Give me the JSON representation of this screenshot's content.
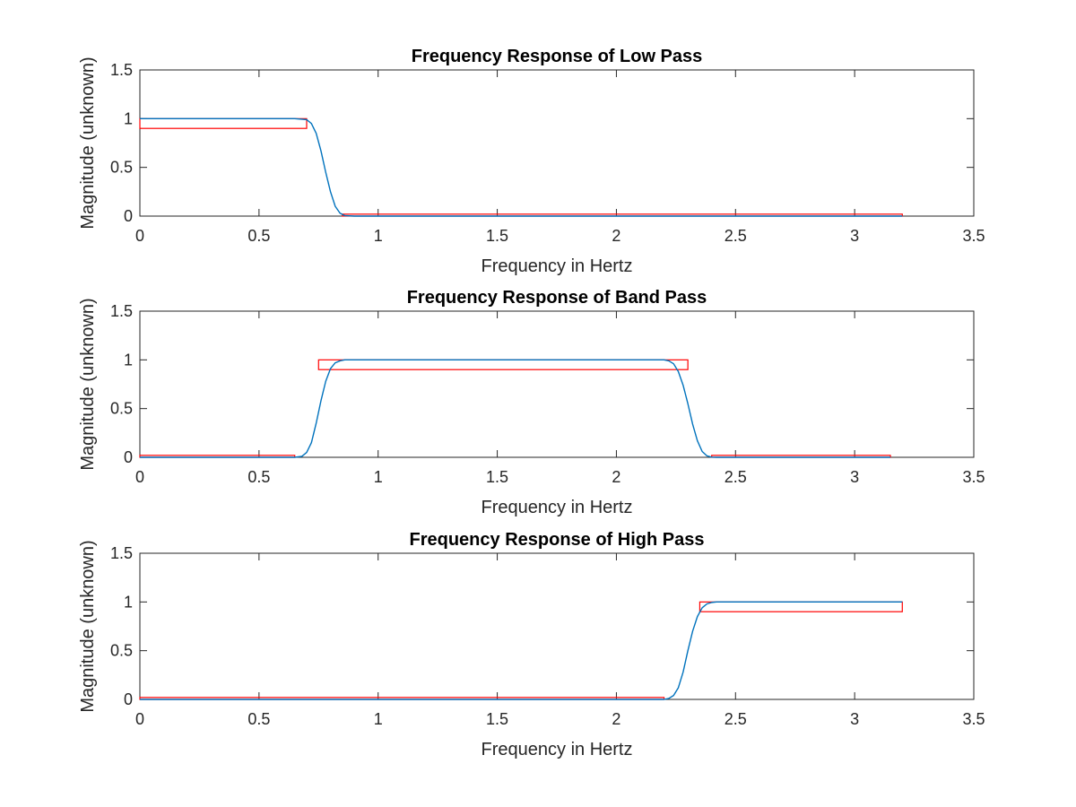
{
  "chart_data": [
    {
      "type": "line",
      "title": "Frequency Response of Low Pass",
      "xlabel": "Frequency in Hertz",
      "ylabel": "Magnitude (unknown)",
      "xlim": [
        0,
        3.5
      ],
      "ylim": [
        0,
        1.5
      ],
      "xticks": [
        "0",
        "0.5",
        "1",
        "1.5",
        "2",
        "2.5",
        "3",
        "3.5"
      ],
      "yticks": [
        "0",
        "0.5",
        "1",
        "1.5"
      ],
      "grid": false,
      "line_color": "#0072BD",
      "mask_color": "#FF0000",
      "series": [
        {
          "x": [
            0,
            0.6,
            0.65,
            0.7,
            0.72,
            0.74,
            0.76,
            0.78,
            0.8,
            0.82,
            0.84,
            0.86,
            0.9,
            1.0,
            3.2
          ],
          "values": [
            1,
            1,
            1,
            0.99,
            0.95,
            0.85,
            0.67,
            0.45,
            0.25,
            0.1,
            0.03,
            0.005,
            0,
            0,
            0
          ]
        }
      ],
      "mask_boxes": [
        {
          "x": [
            0,
            0.7
          ],
          "y": [
            0.9,
            1.0
          ]
        },
        {
          "x": [
            0.85,
            3.2
          ],
          "y": [
            0.0,
            0.02
          ]
        }
      ]
    },
    {
      "type": "line",
      "title": "Frequency Response of Band Pass",
      "xlabel": "Frequency in Hertz",
      "ylabel": "Magnitude (unknown)",
      "xlim": [
        0,
        3.5
      ],
      "ylim": [
        0,
        1.5
      ],
      "xticks": [
        "0",
        "0.5",
        "1",
        "1.5",
        "2",
        "2.5",
        "3",
        "3.5"
      ],
      "yticks": [
        "0",
        "0.5",
        "1",
        "1.5"
      ],
      "grid": false,
      "line_color": "#0072BD",
      "mask_color": "#FF0000",
      "series": [
        {
          "x": [
            0,
            0.65,
            0.68,
            0.7,
            0.72,
            0.74,
            0.76,
            0.78,
            0.8,
            0.82,
            0.84,
            0.86,
            0.88,
            2.2,
            2.22,
            2.24,
            2.26,
            2.28,
            2.3,
            2.32,
            2.34,
            2.36,
            2.38,
            2.4,
            2.42,
            3.15
          ],
          "values": [
            0,
            0,
            0.01,
            0.05,
            0.15,
            0.35,
            0.58,
            0.78,
            0.91,
            0.97,
            0.99,
            1,
            1,
            1,
            0.99,
            0.96,
            0.88,
            0.74,
            0.55,
            0.34,
            0.17,
            0.06,
            0.015,
            0.002,
            0,
            0
          ]
        }
      ],
      "mask_boxes": [
        {
          "x": [
            0,
            0.65
          ],
          "y": [
            0.0,
            0.02
          ]
        },
        {
          "x": [
            0.75,
            2.3
          ],
          "y": [
            0.9,
            1.0
          ]
        },
        {
          "x": [
            2.4,
            3.15
          ],
          "y": [
            0.0,
            0.02
          ]
        }
      ]
    },
    {
      "type": "line",
      "title": "Frequency Response of High Pass",
      "xlabel": "Frequency in Hertz",
      "ylabel": "Magnitude (unknown)",
      "xlim": [
        0,
        3.5
      ],
      "ylim": [
        0,
        1.5
      ],
      "xticks": [
        "0",
        "0.5",
        "1",
        "1.5",
        "2",
        "2.5",
        "3",
        "3.5"
      ],
      "yticks": [
        "0",
        "0.5",
        "1",
        "1.5"
      ],
      "grid": false,
      "line_color": "#0072BD",
      "mask_color": "#FF0000",
      "series": [
        {
          "x": [
            0,
            2.2,
            2.22,
            2.24,
            2.26,
            2.28,
            2.3,
            2.32,
            2.34,
            2.36,
            2.38,
            2.4,
            2.42,
            2.45,
            3.2
          ],
          "values": [
            0,
            0,
            0.01,
            0.04,
            0.12,
            0.28,
            0.5,
            0.7,
            0.85,
            0.94,
            0.98,
            0.995,
            1,
            1,
            1
          ]
        }
      ],
      "mask_boxes": [
        {
          "x": [
            0,
            2.2
          ],
          "y": [
            0.0,
            0.02
          ]
        },
        {
          "x": [
            2.35,
            3.2
          ],
          "y": [
            0.9,
            1.0
          ]
        }
      ]
    }
  ]
}
